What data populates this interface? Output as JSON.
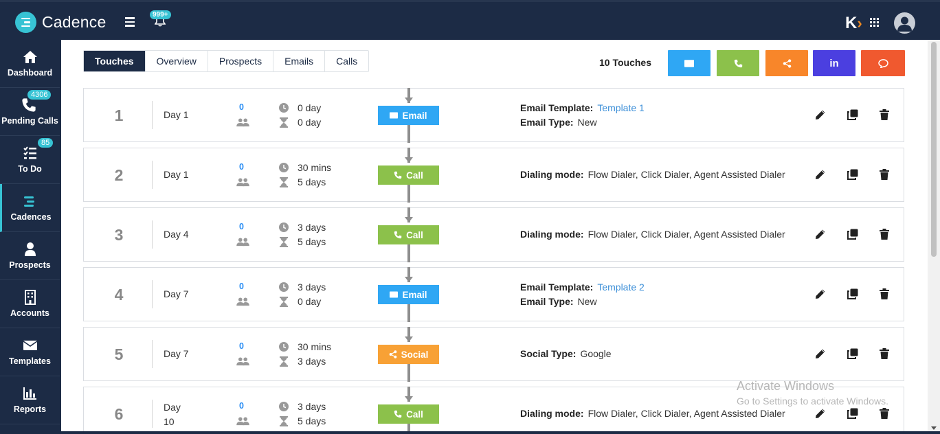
{
  "app": {
    "name": "Cadence",
    "notification_count": "999+"
  },
  "sidebar": {
    "items": [
      {
        "label": "Dashboard",
        "icon": "home-icon",
        "badge": ""
      },
      {
        "label": "Pending Calls",
        "icon": "phone-icon",
        "badge": "4306"
      },
      {
        "label": "To Do",
        "icon": "checklist-icon",
        "badge": "85"
      },
      {
        "label": "Cadences",
        "icon": "cadence-icon",
        "badge": "",
        "active": true
      },
      {
        "label": "Prospects",
        "icon": "user-icon",
        "badge": ""
      },
      {
        "label": "Accounts",
        "icon": "building-icon",
        "badge": ""
      },
      {
        "label": "Templates",
        "icon": "envelope-icon",
        "badge": ""
      },
      {
        "label": "Reports",
        "icon": "bar-chart-icon",
        "badge": ""
      }
    ]
  },
  "tabs": [
    "Touches",
    "Overview",
    "Prospects",
    "Emails",
    "Calls"
  ],
  "active_tab": "Touches",
  "touch_count": "10 Touches",
  "add_buttons": [
    {
      "name": "email",
      "icon": "envelope-icon",
      "color": "#2fa7f4"
    },
    {
      "name": "call",
      "icon": "phone-icon",
      "color": "#8cc14b"
    },
    {
      "name": "social",
      "icon": "share-icon",
      "color": "#f8862a"
    },
    {
      "name": "linkedin",
      "icon": "linkedin-icon",
      "color": "#4b3fe0",
      "text": "in"
    },
    {
      "name": "sms",
      "icon": "chat-icon",
      "color": "#f0592f"
    }
  ],
  "touches": [
    {
      "num": "1",
      "day": "Day 1",
      "count": "0",
      "time1": "0 day",
      "time2": "0 day",
      "type": "Email",
      "l1": "Email Template:",
      "v1": "Template 1",
      "l2": "Email Type:",
      "v2": "New"
    },
    {
      "num": "2",
      "day": "Day 1",
      "count": "0",
      "time1": "30 mins",
      "time2": "5 days",
      "type": "Call",
      "l1": "Dialing mode:",
      "v1": "Flow Dialer, Click Dialer, Agent Assisted Dialer"
    },
    {
      "num": "3",
      "day": "Day 4",
      "count": "0",
      "time1": "3 days",
      "time2": "5 days",
      "type": "Call",
      "l1": "Dialing mode:",
      "v1": "Flow Dialer, Click Dialer, Agent Assisted Dialer"
    },
    {
      "num": "4",
      "day": "Day 7",
      "count": "0",
      "time1": "3 days",
      "time2": "0 day",
      "type": "Email",
      "l1": "Email Template:",
      "v1": "Template 2",
      "l2": "Email Type:",
      "v2": "New"
    },
    {
      "num": "5",
      "day": "Day 7",
      "count": "0",
      "time1": "30 mins",
      "time2": "3 days",
      "type": "Social",
      "l1": "Social Type:",
      "v1": "Google"
    },
    {
      "num": "6",
      "day_a": "Day",
      "day_b": "10",
      "count": "0",
      "time1": "3 days",
      "time2": "5 days",
      "type": "Call",
      "l1": "Dialing mode:",
      "v1": "Flow Dialer, Click Dialer, Agent Assisted Dialer"
    }
  ],
  "watermark": {
    "line1": "Activate Windows",
    "line2": "Go to Settings to activate Windows."
  }
}
